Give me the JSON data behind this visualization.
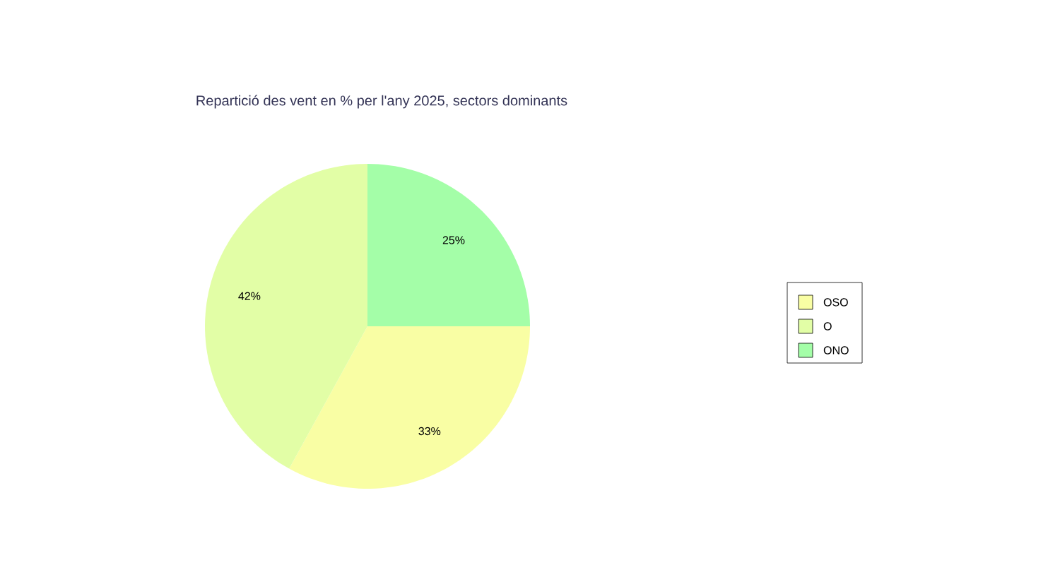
{
  "chart_data": {
    "type": "pie",
    "title": "Repartició des vent en % per l'any 2025, sectors dominants",
    "categories": [
      "OSO",
      "O",
      "ONO"
    ],
    "values": [
      33,
      42,
      25
    ],
    "colors": [
      "#f9fea4",
      "#e2fea6",
      "#a4fea8"
    ],
    "value_labels": [
      "33%",
      "42%",
      "25%"
    ],
    "legend": "right"
  }
}
